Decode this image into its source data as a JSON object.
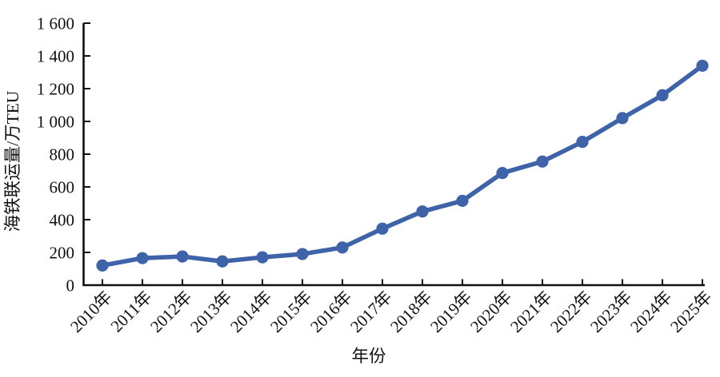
{
  "chart_data": {
    "type": "line",
    "title": "",
    "xlabel": "年份",
    "ylabel": "海铁联运量/万TEU",
    "categories": [
      "2010年",
      "2011年",
      "2012年",
      "2013年",
      "2014年",
      "2015年",
      "2016年",
      "2017年",
      "2018年",
      "2019年",
      "2020年",
      "2021年",
      "2022年",
      "2023年",
      "2024年",
      "2025年"
    ],
    "series": [
      {
        "name": "海铁联运量",
        "values": [
          120,
          165,
          175,
          145,
          170,
          190,
          230,
          345,
          450,
          515,
          685,
          755,
          875,
          1020,
          1160,
          1340
        ]
      }
    ],
    "ylim": [
      0,
      1600
    ],
    "ytick_step": 200,
    "ytick_labels": [
      "0",
      "200",
      "400",
      "600",
      "800",
      "1 000",
      "1 200",
      "1 400",
      "1 600"
    ],
    "grid": false,
    "legend_position": "none",
    "marker": "circle",
    "line_color": "#3e63a8",
    "marker_color": "#3e63a8",
    "axis_color": "#111111",
    "tick_direction": "in"
  }
}
